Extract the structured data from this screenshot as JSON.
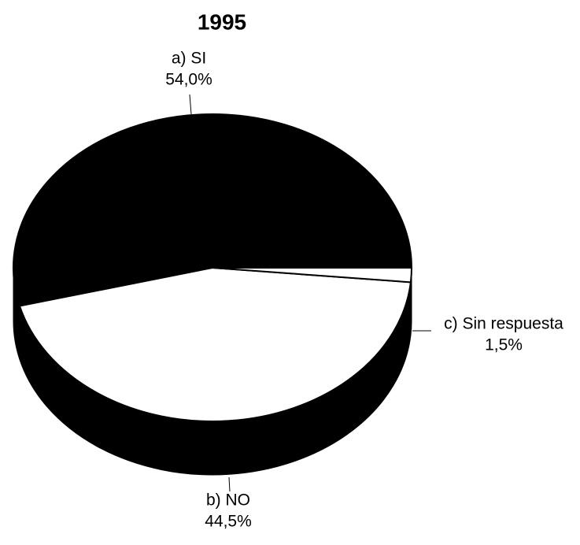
{
  "chart_data": {
    "type": "pie",
    "title": "1995",
    "categories": [
      "a) SI",
      "b) NO",
      "c) Sin respuesta"
    ],
    "values": [
      54.0,
      44.5,
      1.5
    ],
    "value_labels": [
      "54,0%",
      "44,5%",
      "1,5%"
    ],
    "colors": [
      "#000000",
      "#ffffff",
      "#ffffff"
    ]
  }
}
